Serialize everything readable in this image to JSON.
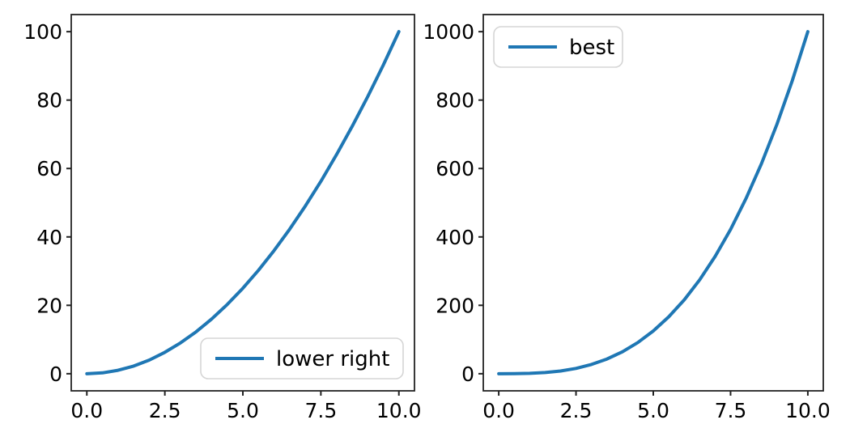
{
  "figure": {
    "background": "#ffffff",
    "curve_color": "#1f77b4",
    "spine_color": "#222222",
    "legend_frame_color": "#d5d5d5"
  },
  "chart_data": [
    {
      "type": "line",
      "title": "",
      "xlabel": "",
      "ylabel": "",
      "grid": false,
      "xlim": [
        -0.5,
        10.5
      ],
      "ylim": [
        -5,
        105
      ],
      "x_ticks": [
        0,
        2.5,
        5,
        7.5,
        10
      ],
      "x_tick_labels": [
        "0.0",
        "2.5",
        "5.0",
        "7.5",
        "10.0"
      ],
      "y_ticks": [
        0,
        20,
        40,
        60,
        80,
        100
      ],
      "y_tick_labels": [
        "0",
        "20",
        "40",
        "60",
        "80",
        "100"
      ],
      "legend": {
        "position": "lower right",
        "entries": [
          {
            "label": "lower right",
            "color": "#1f77b4"
          }
        ]
      },
      "series": [
        {
          "name": "lower right",
          "color": "#1f77b4",
          "x": [
            0,
            0.5,
            1,
            1.5,
            2,
            2.5,
            3,
            3.5,
            4,
            4.5,
            5,
            5.5,
            6,
            6.5,
            7,
            7.5,
            8,
            8.5,
            9,
            9.5,
            10
          ],
          "y": [
            0,
            0.25,
            1,
            2.25,
            4,
            6.25,
            9,
            12.25,
            16,
            20.25,
            25,
            30.25,
            36,
            42.25,
            49,
            56.25,
            64,
            72.25,
            81,
            90.25,
            100
          ]
        }
      ]
    },
    {
      "type": "line",
      "title": "",
      "xlabel": "",
      "ylabel": "",
      "grid": false,
      "xlim": [
        -0.5,
        10.5
      ],
      "ylim": [
        -50,
        1050
      ],
      "x_ticks": [
        0,
        2.5,
        5,
        7.5,
        10
      ],
      "x_tick_labels": [
        "0.0",
        "2.5",
        "5.0",
        "7.5",
        "10.0"
      ],
      "y_ticks": [
        0,
        200,
        400,
        600,
        800,
        1000
      ],
      "y_tick_labels": [
        "0",
        "200",
        "400",
        "600",
        "800",
        "1000"
      ],
      "legend": {
        "position": "upper left",
        "entries": [
          {
            "label": "best",
            "color": "#1f77b4"
          }
        ]
      },
      "series": [
        {
          "name": "best",
          "color": "#1f77b4",
          "x": [
            0,
            0.5,
            1,
            1.5,
            2,
            2.5,
            3,
            3.5,
            4,
            4.5,
            5,
            5.5,
            6,
            6.5,
            7,
            7.5,
            8,
            8.5,
            9,
            9.5,
            10
          ],
          "y": [
            0,
            0.125,
            1,
            3.375,
            8,
            15.625,
            27,
            42.875,
            64,
            91.125,
            125,
            166.375,
            216,
            274.625,
            343,
            421.875,
            512,
            614.125,
            729,
            857.375,
            1000
          ]
        }
      ]
    }
  ]
}
